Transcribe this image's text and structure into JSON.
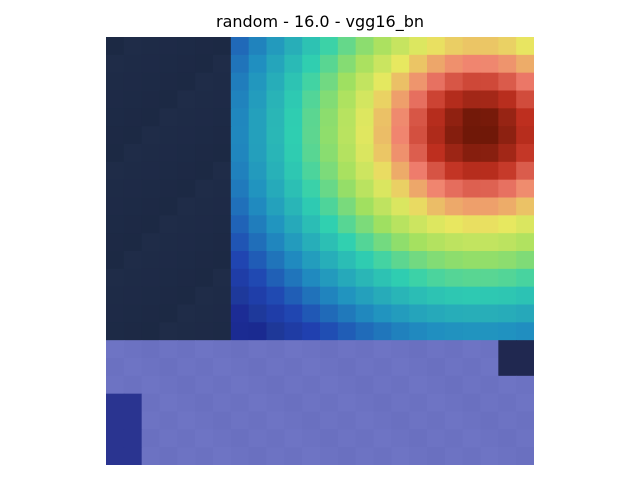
{
  "figure": {
    "title": "random - 16.0 - vgg16_bn"
  },
  "heatmap": {
    "grid_rows": 24,
    "grid_cols": 24,
    "description_colors": {
      "background_dark": "#1e2a44",
      "overlay_low": "#2a3aa0",
      "overlay_mid": "#30d0c0",
      "overlay_high": "#e8e860",
      "overlay_peak": "#a01010",
      "lower_region": "#6a6ec8"
    }
  }
}
